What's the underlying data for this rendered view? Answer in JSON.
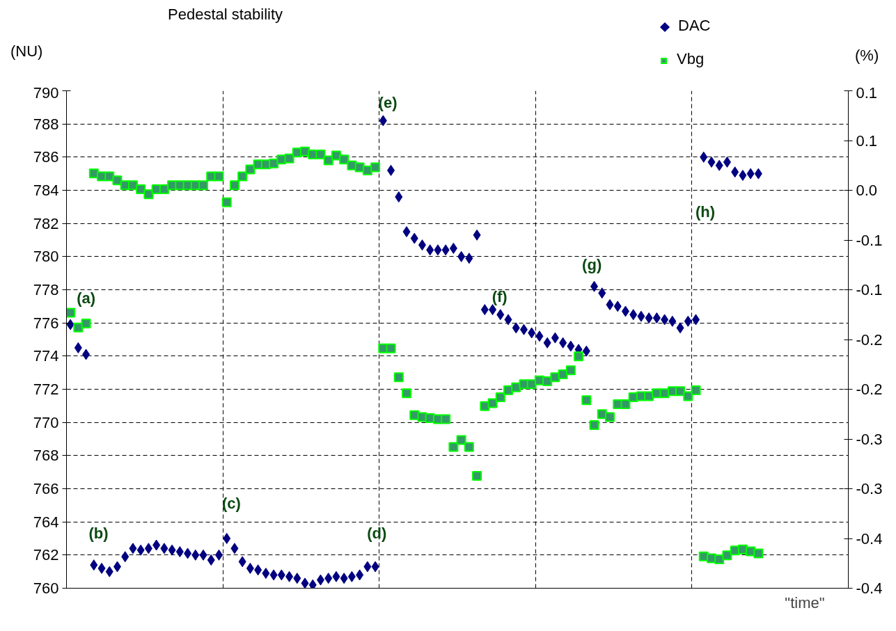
{
  "chart_data": {
    "type": "scatter",
    "title": "Pedestal stability",
    "xlabel": "\"time\"",
    "ylabel": "(NU)",
    "y2label": "(%)",
    "categories": [
      null,
      null,
      null,
      null,
      null,
      null,
      null,
      null,
      null,
      null,
      null,
      null,
      null,
      null,
      null,
      null,
      null,
      null,
      null,
      null,
      null,
      null,
      null,
      null,
      null,
      null,
      null,
      null,
      null,
      null,
      null,
      null,
      null,
      null,
      null,
      null,
      null,
      null,
      null,
      null,
      null,
      null,
      null,
      null,
      null,
      null,
      null,
      null,
      null,
      null,
      null,
      null,
      null,
      null,
      null,
      null,
      null,
      null,
      null,
      null,
      null,
      null,
      null,
      null,
      null,
      null,
      null,
      null,
      null,
      null,
      null,
      null,
      null,
      null,
      null,
      null,
      null,
      null,
      null,
      null,
      null,
      null,
      null,
      null,
      null,
      null,
      null,
      null,
      null,
      null,
      null,
      null,
      null,
      null,
      null,
      null,
      null,
      null,
      null,
      null
    ],
    "ylim": [
      760,
      790
    ],
    "yticks": [
      760,
      762,
      764,
      766,
      768,
      770,
      772,
      774,
      776,
      778,
      780,
      782,
      784,
      786,
      788,
      790
    ],
    "y2lim": [
      -0.4,
      0.1
    ],
    "y2ticks": [
      {
        "value": 0.1,
        "label": "0.1"
      },
      {
        "value": 0.05,
        "label": "0.1"
      },
      {
        "value": 0.0,
        "label": "0.0"
      },
      {
        "value": -0.05,
        "label": "-0.1"
      },
      {
        "value": -0.1,
        "label": "-0.1"
      },
      {
        "value": -0.15,
        "label": "-0.2"
      },
      {
        "value": -0.2,
        "label": "-0.2"
      },
      {
        "value": -0.25,
        "label": "-0.3"
      },
      {
        "value": -0.3,
        "label": "-0.3"
      },
      {
        "value": -0.35,
        "label": "-0.4"
      },
      {
        "value": -0.4,
        "label": "-0.4"
      }
    ],
    "grid": true,
    "legend": "top right",
    "series": [
      {
        "name": "DAC",
        "color": "#000080",
        "marker": "diamond",
        "values": [
          775.9,
          774.5,
          774.1,
          761.4,
          761.2,
          761.0,
          761.3,
          761.9,
          762.4,
          762.3,
          762.4,
          762.6,
          762.4,
          762.3,
          762.2,
          762.1,
          762.0,
          762.0,
          761.7,
          762.0,
          763.0,
          762.4,
          761.6,
          761.2,
          761.1,
          760.9,
          760.8,
          760.8,
          760.7,
          760.6,
          760.3,
          760.2,
          760.5,
          760.6,
          760.7,
          760.6,
          760.7,
          760.8,
          761.3,
          761.3,
          788.2,
          785.2,
          783.6,
          781.5,
          781.1,
          780.7,
          780.4,
          780.4,
          780.4,
          780.5,
          780.0,
          779.9,
          781.3,
          776.8,
          776.8,
          776.5,
          776.2,
          775.7,
          775.6,
          775.4,
          775.2,
          774.8,
          775.1,
          774.8,
          774.6,
          774.4,
          774.3,
          778.2,
          777.8,
          777.1,
          777.0,
          776.7,
          776.5,
          776.4,
          776.3,
          776.3,
          776.2,
          776.1,
          775.7,
          776.1,
          776.2,
          786.0,
          785.7,
          785.5,
          785.7,
          785.1,
          784.9,
          785.0,
          785.0,
          null,
          null,
          null,
          null,
          null,
          null,
          null,
          null,
          null,
          null,
          null
        ]
      },
      {
        "name": "Vbg",
        "color": "#339966",
        "marker": "square",
        "axis": "y2",
        "values": [
          -0.123,
          -0.138,
          -0.134,
          0.017,
          0.014,
          0.014,
          0.01,
          0.005,
          0.005,
          0.001,
          -0.004,
          0.001,
          0.001,
          0.005,
          0.005,
          0.005,
          0.005,
          0.005,
          0.014,
          0.014,
          -0.012,
          0.005,
          0.014,
          0.021,
          0.026,
          0.026,
          0.027,
          0.031,
          0.032,
          0.038,
          0.039,
          0.036,
          0.036,
          0.03,
          0.035,
          0.031,
          0.025,
          0.023,
          0.02,
          0.023,
          -0.159,
          -0.159,
          -0.188,
          -0.204,
          -0.226,
          -0.228,
          -0.229,
          -0.23,
          -0.23,
          -0.258,
          -0.251,
          -0.258,
          -0.287,
          -0.217,
          -0.214,
          -0.208,
          -0.201,
          -0.198,
          -0.195,
          -0.195,
          -0.191,
          -0.192,
          -0.188,
          -0.185,
          -0.181,
          -0.167,
          -0.211,
          -0.236,
          -0.225,
          -0.228,
          -0.215,
          -0.215,
          -0.208,
          -0.207,
          -0.207,
          -0.204,
          -0.204,
          -0.202,
          -0.202,
          -0.207,
          -0.201,
          -0.368,
          -0.37,
          -0.371,
          -0.367,
          -0.362,
          -0.361,
          -0.363,
          -0.365,
          null,
          null,
          null,
          null,
          null,
          null,
          null,
          null,
          null,
          null,
          null
        ]
      }
    ],
    "annotations": [
      "(a)",
      "(b)",
      "(c)",
      "(d)",
      "(e)",
      "(f)",
      "(g)",
      "(h)"
    ]
  }
}
